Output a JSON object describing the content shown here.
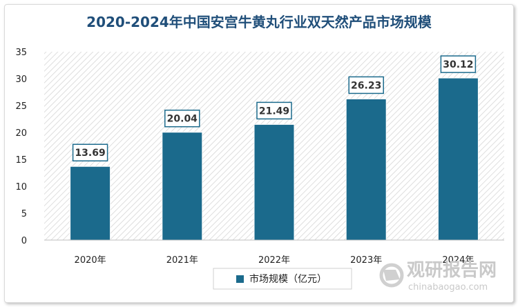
{
  "chart_data": {
    "type": "bar",
    "title": "2020-2024年中国安宫牛黄丸行业双天然产品市场规模",
    "categories": [
      "2020年",
      "2021年",
      "2022年",
      "2023年",
      "2024年"
    ],
    "series": [
      {
        "name": "市场规模（亿元）",
        "values": [
          13.69,
          20.04,
          21.49,
          26.23,
          30.12
        ]
      }
    ],
    "data_labels": [
      "13.69",
      "20.04",
      "21.49",
      "26.23",
      "30.12"
    ],
    "ylim": [
      0,
      35
    ],
    "yticks": [
      0,
      5,
      10,
      15,
      20,
      25,
      30,
      35
    ],
    "grid": false,
    "plot_background": "diagonal-hatch",
    "legend_position": "bottom",
    "bar_color": "#1b6a8c",
    "label_border_color": "#1b6a8c",
    "title_color": "#1f4e79"
  },
  "watermark": {
    "cn": "观研报告网",
    "en": "chinabaogao.com",
    "icon": "chinabaogao-logo-icon"
  }
}
